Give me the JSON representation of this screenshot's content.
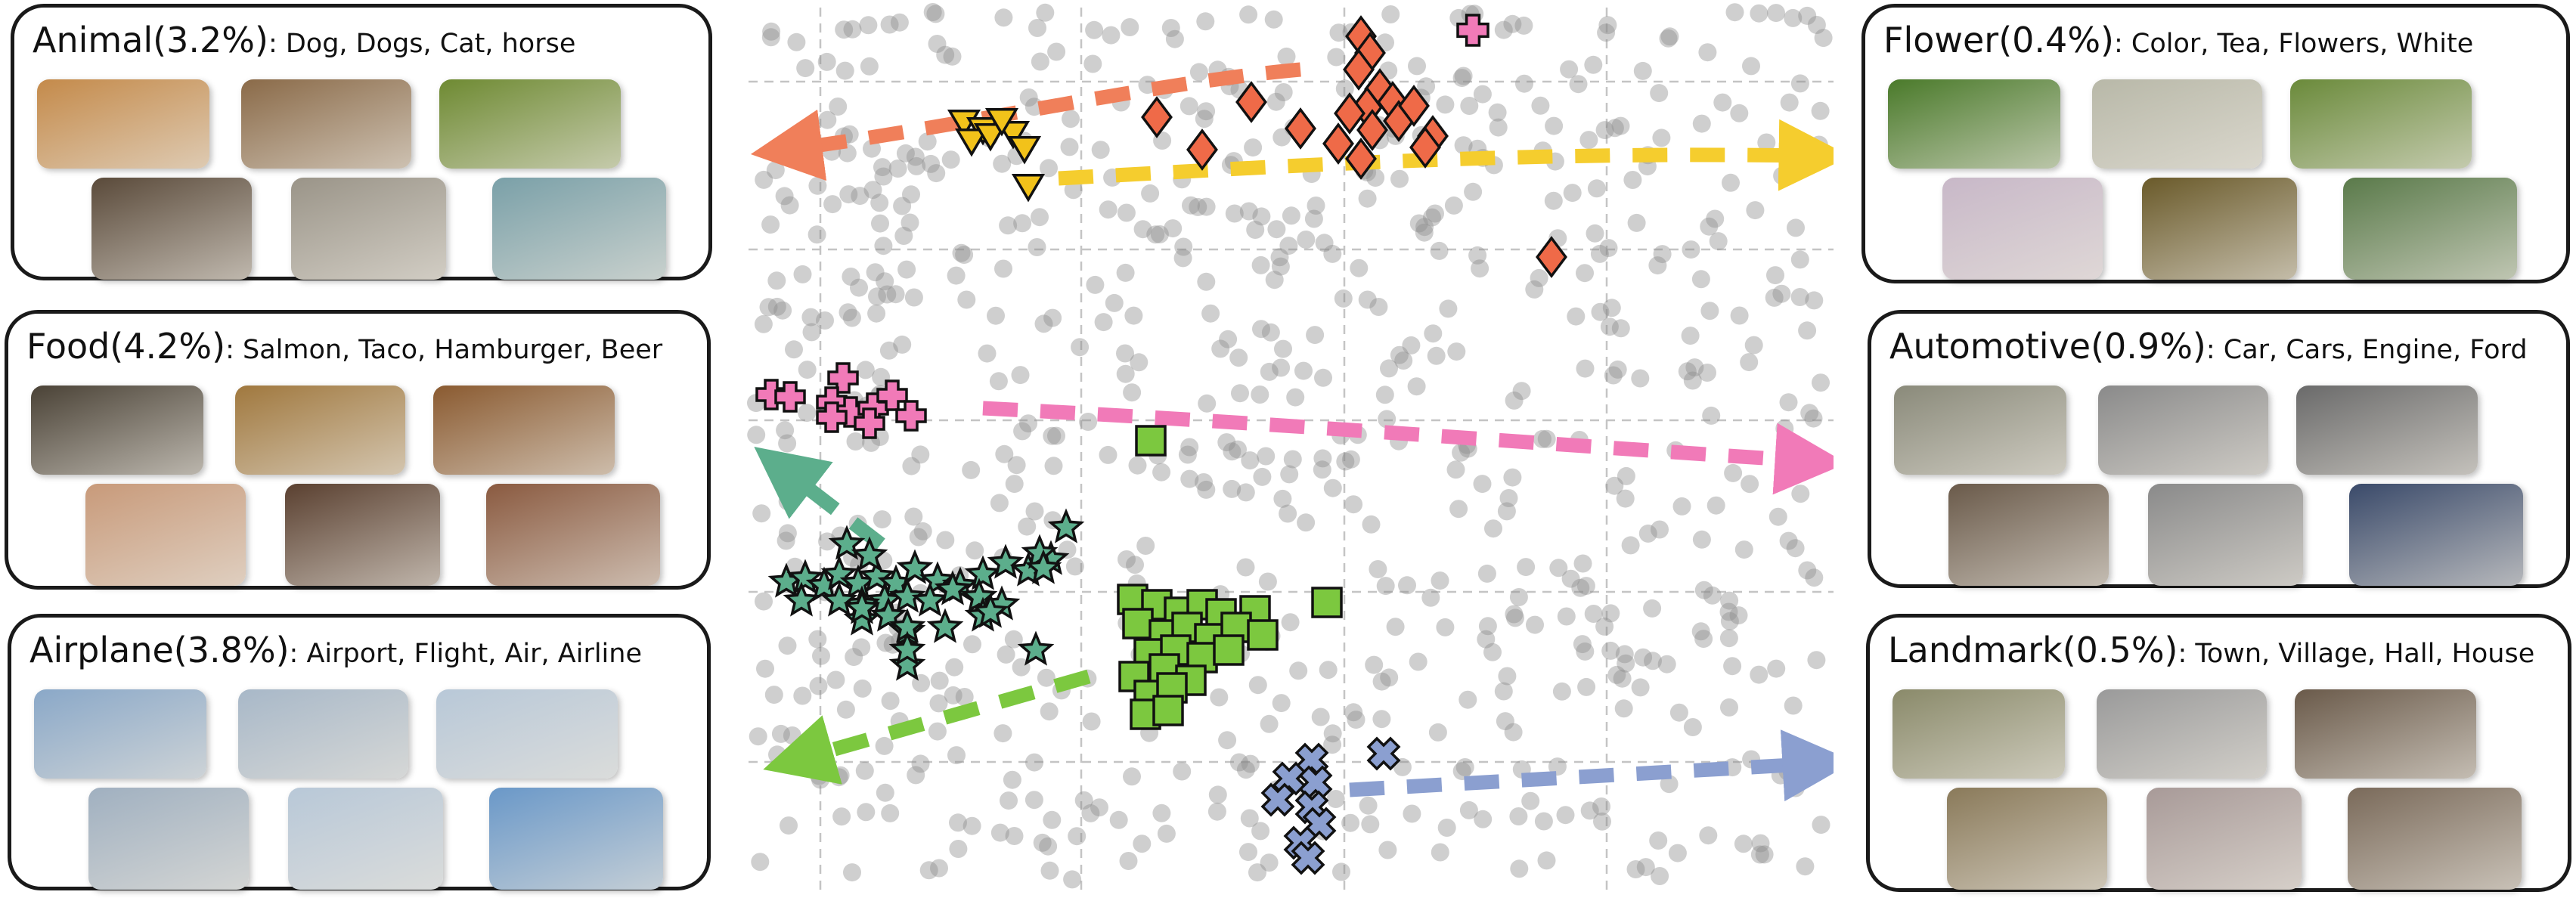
{
  "panels": [
    {
      "id": "animal",
      "title": "Animal(3.2%)",
      "keywords": ": Dog, Dogs, Cat, horse",
      "bg": "#f6d5cc",
      "thumbs": [
        "#c48a4a",
        "#8a6a48",
        "#6e8a32",
        "#5a4a3a",
        "#9a9488",
        "#7aa0a8"
      ]
    },
    {
      "id": "food",
      "title": "Food(4.2%)",
      "keywords": ": Salmon, Taco, Hamburger, Beer",
      "bg": "#d6ebe3",
      "thumbs": [
        "#4a4236",
        "#a0783e",
        "#8a5a30",
        "#c89a7a",
        "#5a4030",
        "#8a5a40"
      ]
    },
    {
      "id": "airplane",
      "title": "Airplane(3.8%)",
      "keywords": ": Airport, Flight, Air, Airline",
      "bg": "#d3e4be",
      "thumbs": [
        "#8aa8c8",
        "#a8b8c8",
        "#b8c8d8",
        "#a0b0c0",
        "#b8c8d8",
        "#6a98c8"
      ]
    },
    {
      "id": "flower",
      "title": "Flower(0.4%)",
      "keywords": ": Color, Tea, Flowers, White",
      "bg": "#f9ecb6",
      "thumbs": [
        "#4a7a2a",
        "#b8b8a8",
        "#6a8a3a",
        "#c8b8c8",
        "#6a5a2a",
        "#5a7a4a"
      ]
    },
    {
      "id": "automotive",
      "title": "Automotive(0.9%)",
      "keywords": ": Car, Cars, Engine, Ford",
      "bg": "#e5cde0",
      "thumbs": [
        "#8a8a7a",
        "#8a8a8a",
        "#6a6a6a",
        "#6a5a4a",
        "#8a8a8a",
        "#3a4a6a"
      ]
    },
    {
      "id": "landmark",
      "title": "Landmark(0.5%)",
      "keywords": ": Town, Village, Hall, House",
      "bg": "#cfdcf1",
      "thumbs": [
        "#8a8a6a",
        "#9a9a9a",
        "#6a5a4a",
        "#8a7a5a",
        "#a89a98",
        "#7a6a5a"
      ]
    }
  ],
  "colors": {
    "animal": "#f07f5a",
    "flower": "#f5cd2e",
    "food": "#f17ab8",
    "green": "#7cc83f",
    "teal": "#5cae8c",
    "blue": "#8b9fd0",
    "grey": "#9a9a9a",
    "animal_marker": "#ef6a48",
    "flower_marker": "#f2c21a"
  },
  "icons": {
    "animal": "diamond-icon",
    "flower": "triangle-icon",
    "food": "plus-icon",
    "green": "square-icon",
    "teal": "star-icon",
    "blue": "cross-icon"
  }
}
